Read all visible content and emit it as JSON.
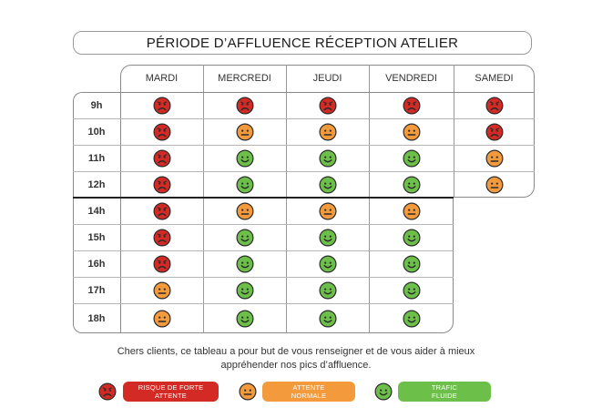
{
  "title": "PÉRIODE D’AFFLUENCE RÉCEPTION ATELIER",
  "days": [
    "MARDI",
    "MERCREDI",
    "JEUDI",
    "VENDREDI",
    "SAMEDI"
  ],
  "hours": [
    "9h",
    "10h",
    "11h",
    "12h",
    "14h",
    "15h",
    "16h",
    "17h",
    "18h"
  ],
  "status": {
    "9h": [
      "forte",
      "forte",
      "forte",
      "forte",
      "forte"
    ],
    "10h": [
      "forte",
      "normale",
      "normale",
      "normale",
      "forte"
    ],
    "11h": [
      "forte",
      "fluide",
      "fluide",
      "fluide",
      "normale"
    ],
    "12h": [
      "forte",
      "fluide",
      "fluide",
      "fluide",
      "normale"
    ],
    "14h": [
      "forte",
      "normale",
      "normale",
      "normale",
      null
    ],
    "15h": [
      "forte",
      "fluide",
      "fluide",
      "fluide",
      null
    ],
    "16h": [
      "forte",
      "fluide",
      "fluide",
      "fluide",
      null
    ],
    "17h": [
      "normale",
      "fluide",
      "fluide",
      "fluide",
      null
    ],
    "18h": [
      "normale",
      "fluide",
      "fluide",
      "fluide",
      null
    ]
  },
  "footer": {
    "line1": "Chers clients, ce tableau a pour but de vous renseigner et de vous aider à mieux",
    "line2": "appréhender nos pics d’affluence."
  },
  "legend": [
    {
      "key": "forte",
      "line1": "RISQUE DE FORTE",
      "line2": "ATTENTE",
      "icon": "sad-face-icon"
    },
    {
      "key": "normale",
      "line1": "ATTENTE",
      "line2": "NORMALE",
      "icon": "neutral-face-icon"
    },
    {
      "key": "fluide",
      "line1": "TRAFIC",
      "line2": "FLUIDE",
      "icon": "happy-face-icon"
    }
  ],
  "colors": {
    "forte": "#d42a25",
    "normale": "#f39a3c",
    "fluide": "#6cc04a",
    "outline": "#2b2b2b"
  }
}
